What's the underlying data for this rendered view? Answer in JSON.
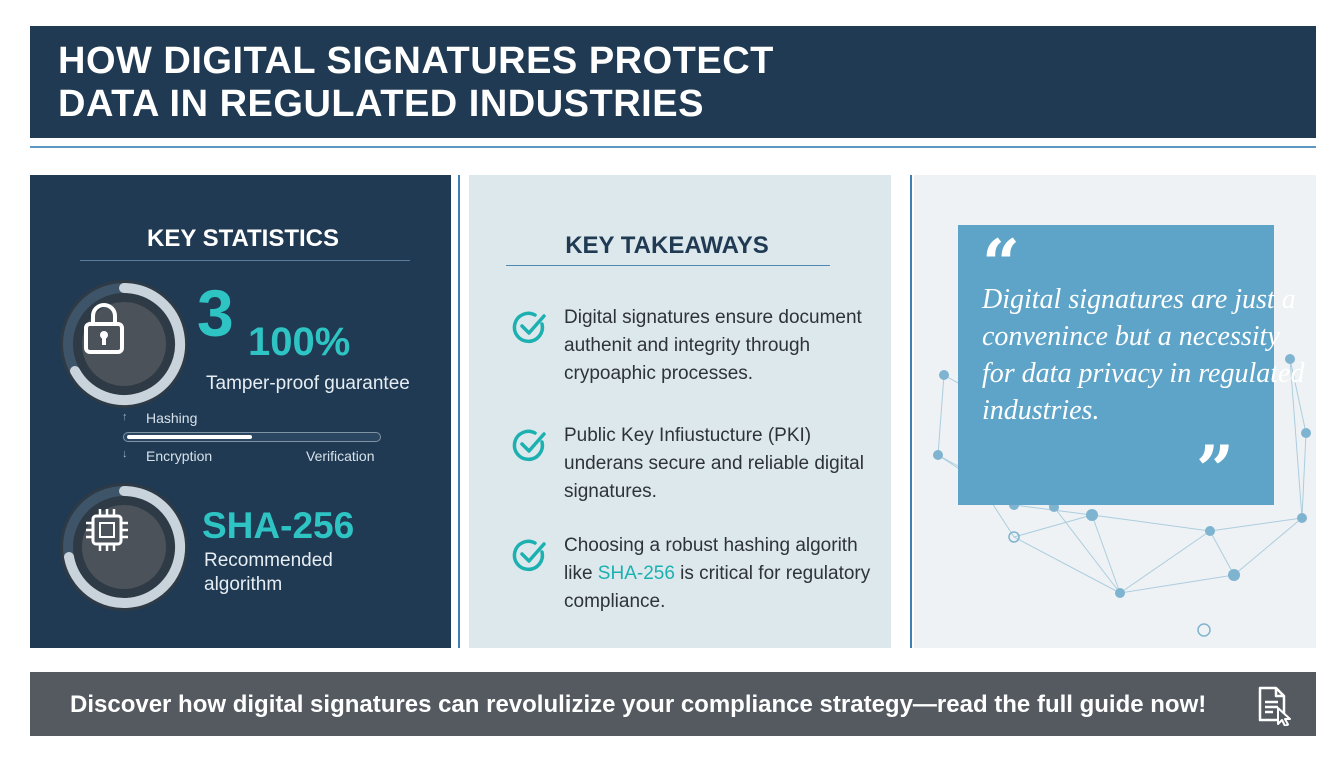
{
  "header": {
    "title": "HOW DIGITAL SIGNATURES PROTECT\nDATA IN REGULATED INDUSTRIES"
  },
  "stats": {
    "heading": "KEY STATISTICS",
    "stat1_icon": "padlock-icon",
    "stat1_number": "3",
    "stat1_percent": "100%",
    "stat1_label": "Tamper-proof guarantee",
    "process": {
      "step_hashing": "Hashing",
      "step_encryption": "Encryption",
      "step_verification": "Verification",
      "progress_fraction": 0.5
    },
    "stat2_icon": "chip-icon",
    "stat2_value": "SHA-256",
    "stat2_label": "Recommended algorithm"
  },
  "takeaways": {
    "heading": "KEY TAKEAWAYS",
    "items": [
      {
        "text": "Digital signatures ensure document authenit and integrity through crypoaphic processes."
      },
      {
        "text": "Public Key Infiustucture (PKI) underans secure and reliable digital signatures."
      },
      {
        "text_before": "Choosing a robust hashing algorith like ",
        "highlight": "SHA-256",
        "text_after": " is critical for regulatory compliance."
      }
    ]
  },
  "quote": {
    "open_mark": "“",
    "close_mark": "”",
    "text": "Digital signatures are just a convenince but a necessity for data privacy in regulated industries."
  },
  "footer": {
    "cta": "Discover how digital signatures can revolulizize your compliance strategy—read the full guide now!",
    "icon": "document-cursor-icon"
  },
  "colors": {
    "navy": "#1f3a52",
    "teal_accent": "#2ec4c4",
    "quote_blue": "#5ea4c9",
    "footer_gray": "#545a60"
  }
}
